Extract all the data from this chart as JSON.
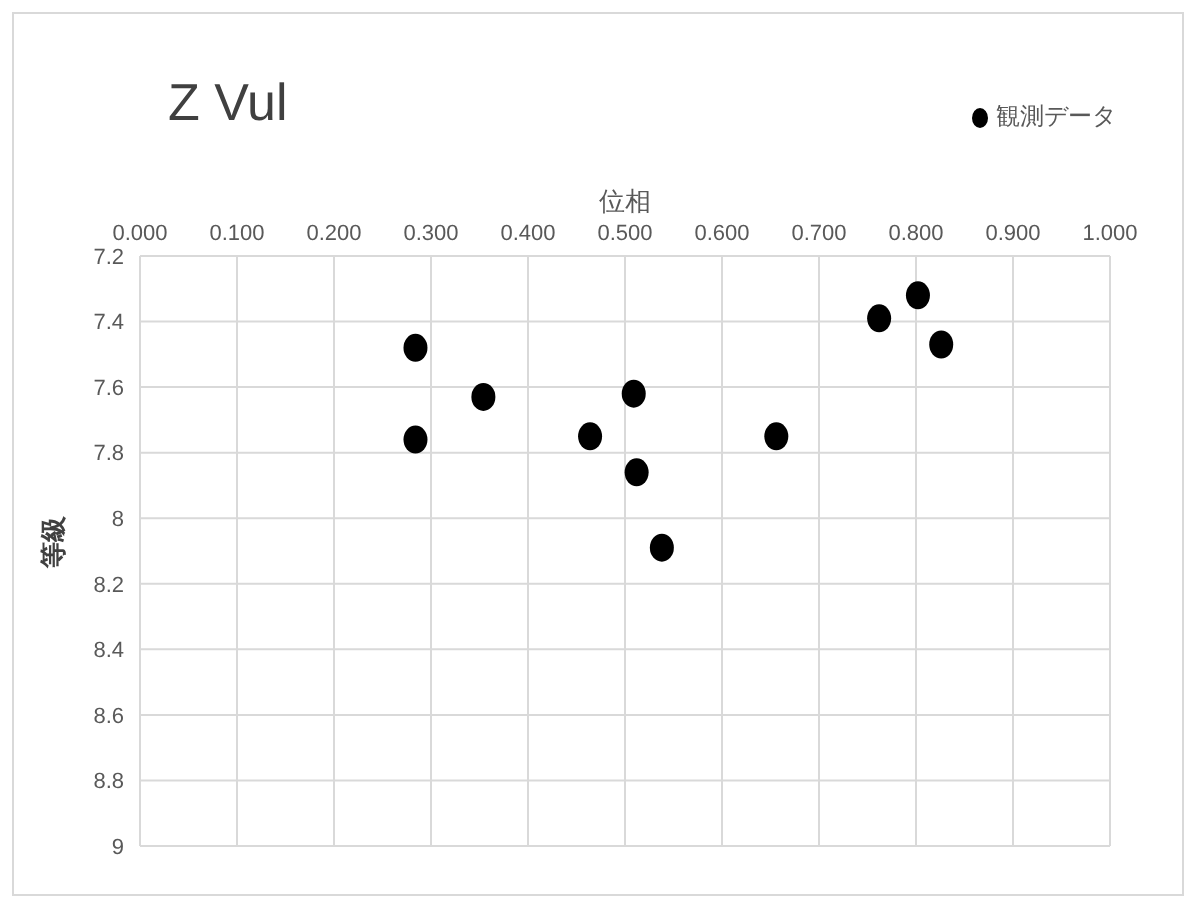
{
  "chart_data": {
    "type": "scatter",
    "title": "Z Vul",
    "xlabel": "位相",
    "ylabel": "等級",
    "series": [
      {
        "name": "観測データ",
        "color": "#000000",
        "x": [
          0.284,
          0.284,
          0.354,
          0.464,
          0.509,
          0.512,
          0.538,
          0.656,
          0.762,
          0.802,
          0.826
        ],
        "values": [
          7.48,
          7.76,
          7.63,
          7.75,
          7.62,
          7.86,
          8.09,
          7.75,
          7.39,
          7.32,
          7.47
        ]
      }
    ],
    "xlim": [
      0,
      1
    ],
    "xticks": [
      {
        "value": 0,
        "label": "0.000"
      },
      {
        "value": 0.1,
        "label": "0.100"
      },
      {
        "value": 0.2,
        "label": "0.200"
      },
      {
        "value": 0.3,
        "label": "0.300"
      },
      {
        "value": 0.4,
        "label": "0.400"
      },
      {
        "value": 0.5,
        "label": "0.500"
      },
      {
        "value": 0.6,
        "label": "0.600"
      },
      {
        "value": 0.7,
        "label": "0.700"
      },
      {
        "value": 0.8,
        "label": "0.800"
      },
      {
        "value": 0.9,
        "label": "0.900"
      },
      {
        "value": 1,
        "label": "1.000"
      }
    ],
    "ylim": [
      9,
      7.2
    ],
    "yticks": [
      7.2,
      7.4,
      7.6,
      7.8,
      8,
      8.2,
      8.4,
      8.6,
      8.8,
      9
    ],
    "grid": true,
    "legend": "top right",
    "marker": "circle"
  }
}
